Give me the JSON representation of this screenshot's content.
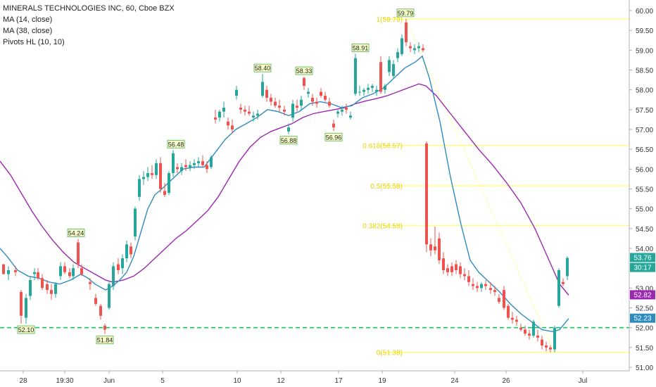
{
  "legend": {
    "title": "MINERALS TECHNOLOGIES INC, 60, Cboe BZX",
    "ma14": "MA (14, close)",
    "ma38": "MA (38, close)",
    "pivots": "Pivots HL (10, 10)"
  },
  "colors": {
    "up": "#26a69a",
    "down": "#ef5350",
    "ma14": "#2e8bc0",
    "ma38": "#9c27b0",
    "fib": "#ffff66",
    "dashed_level": "#00c853",
    "pivot_bg": "#f8ffc8",
    "pivot_border": "#4caf50"
  },
  "chart_data": {
    "type": "candlestick",
    "title": "MINERALS TECHNOLOGIES INC, 60, Cboe BZX",
    "x_ticks": [
      "28",
      "19:30",
      "Jun",
      "5",
      "10",
      "12",
      "17",
      "19",
      "24",
      "26",
      "Jul"
    ],
    "y_ticks": [
      "60.00",
      "59.50",
      "59.00",
      "58.50",
      "58.00",
      "57.50",
      "57.00",
      "56.50",
      "56.00",
      "55.50",
      "55.00",
      "54.50",
      "54.00",
      "53.50",
      "53.00",
      "52.50",
      "52.00",
      "51.50",
      "51.00"
    ],
    "ylim": [
      50.95,
      60.2
    ],
    "fib_levels": [
      {
        "label": "1(59.79)",
        "value": 59.79
      },
      {
        "label": "0.618(56.57)",
        "value": 56.6
      },
      {
        "label": "0.5(55.58)",
        "value": 55.58
      },
      {
        "label": "0.382(54.58)",
        "value": 54.58
      },
      {
        "label": "0(51.38)",
        "value": 51.38
      }
    ],
    "dashed_level": 52.0,
    "pivots": [
      {
        "label": "52.10",
        "x": 37,
        "value": 52.1,
        "pos": "below"
      },
      {
        "label": "54.24",
        "x": 108,
        "value": 54.24,
        "pos": "above"
      },
      {
        "label": "51.84",
        "x": 149,
        "value": 51.84,
        "pos": "below"
      },
      {
        "label": "56.48",
        "x": 250,
        "value": 56.48,
        "pos": "above"
      },
      {
        "label": "58.40",
        "x": 373,
        "value": 58.4,
        "pos": "above"
      },
      {
        "label": "58.33",
        "x": 432,
        "value": 58.33,
        "pos": "above"
      },
      {
        "label": "56.88",
        "x": 410,
        "value": 56.88,
        "pos": "below"
      },
      {
        "label": "56.96",
        "x": 474,
        "value": 56.96,
        "pos": "below"
      },
      {
        "label": "58.91",
        "x": 512,
        "value": 58.91,
        "pos": "above"
      },
      {
        "label": "59.79",
        "x": 576,
        "value": 59.79,
        "pos": "above"
      }
    ],
    "price_labels": [
      {
        "label": "53.76",
        "value": 53.76,
        "bg": "#26a69a"
      },
      {
        "label": "30:17",
        "value": 53.51,
        "bg": "#26a69a"
      },
      {
        "label": "52.82",
        "value": 52.82,
        "bg": "#9c27b0"
      },
      {
        "label": "52.23",
        "value": 52.23,
        "bg": "#2e8bc0"
      }
    ],
    "candles": [
      [
        5,
        53.6,
        53.6,
        53.35,
        53.35
      ],
      [
        12,
        53.35,
        53.55,
        53.2,
        53.45
      ],
      [
        22,
        53.45,
        53.55,
        53.3,
        53.4
      ],
      [
        30,
        52.9,
        52.95,
        52.1,
        52.3
      ],
      [
        37,
        52.25,
        52.85,
        52.1,
        52.75
      ],
      [
        43,
        52.8,
        53.3,
        52.7,
        53.2
      ],
      [
        49,
        53.35,
        53.5,
        53.2,
        53.4
      ],
      [
        54,
        53.4,
        53.5,
        53.2,
        53.25
      ],
      [
        60,
        53.25,
        53.35,
        52.95,
        53.0
      ],
      [
        67,
        53.1,
        53.2,
        52.85,
        52.95
      ],
      [
        73,
        52.95,
        53.1,
        52.7,
        52.85
      ],
      [
        79,
        52.85,
        53.15,
        52.75,
        53.1
      ],
      [
        86,
        53.3,
        53.65,
        53.2,
        53.55
      ],
      [
        92,
        53.55,
        53.65,
        53.35,
        53.4
      ],
      [
        99,
        53.4,
        53.5,
        53.25,
        53.3
      ],
      [
        104,
        53.3,
        53.6,
        53.2,
        53.5
      ],
      [
        111,
        54.15,
        54.24,
        53.5,
        53.6
      ],
      [
        116,
        53.5,
        53.6,
        53.3,
        53.35
      ],
      [
        128,
        53.15,
        53.25,
        52.95,
        53.1
      ],
      [
        136,
        52.75,
        52.85,
        52.55,
        52.6
      ],
      [
        143,
        52.55,
        52.6,
        52.2,
        52.3
      ],
      [
        149,
        52.05,
        52.1,
        51.84,
        51.95
      ],
      [
        155,
        52.5,
        53.15,
        52.45,
        53.1
      ],
      [
        161,
        53.05,
        53.65,
        52.95,
        53.55
      ],
      [
        168,
        53.6,
        53.75,
        53.35,
        53.45
      ],
      [
        174,
        53.5,
        53.85,
        53.35,
        53.75
      ],
      [
        180,
        53.75,
        54.2,
        53.65,
        54.1
      ],
      [
        186,
        54.05,
        54.15,
        53.75,
        53.85
      ],
      [
        192,
        54.3,
        55.05,
        54.2,
        55.0
      ],
      [
        198,
        55.3,
        55.85,
        55.2,
        55.75
      ],
      [
        204,
        55.75,
        55.95,
        55.6,
        55.8
      ],
      [
        210,
        55.8,
        56.05,
        55.7,
        55.9
      ],
      [
        216,
        55.9,
        56.1,
        55.75,
        55.85
      ],
      [
        222,
        55.85,
        56.25,
        55.75,
        56.15
      ],
      [
        228,
        56.15,
        56.3,
        55.4,
        55.5
      ],
      [
        234,
        55.45,
        55.65,
        55.3,
        55.35
      ],
      [
        240,
        55.4,
        55.95,
        55.35,
        55.9
      ],
      [
        246,
        55.9,
        56.48,
        55.8,
        56.4
      ],
      [
        252,
        56.05,
        56.15,
        55.9,
        56.0
      ],
      [
        258,
        55.95,
        56.15,
        55.85,
        56.05
      ],
      [
        264,
        56.1,
        56.25,
        55.95,
        56.05
      ],
      [
        270,
        56.05,
        56.2,
        55.95,
        56.1
      ],
      [
        276,
        56.1,
        56.25,
        56.0,
        56.15
      ],
      [
        282,
        56.15,
        56.3,
        56.05,
        56.2
      ],
      [
        288,
        56.2,
        56.35,
        56.05,
        56.1
      ],
      [
        294,
        56.1,
        56.2,
        55.9,
        56.0
      ],
      [
        300,
        56.05,
        56.35,
        56.0,
        56.3
      ],
      [
        306,
        57.3,
        57.5,
        57.15,
        57.25
      ],
      [
        312,
        57.3,
        57.5,
        57.2,
        57.45
      ],
      [
        318,
        57.45,
        57.7,
        57.3,
        57.55
      ],
      [
        324,
        57.2,
        57.3,
        57.0,
        57.1
      ],
      [
        330,
        57.1,
        57.25,
        56.9,
        57.0
      ],
      [
        336,
        57.85,
        58.1,
        57.75,
        58.0
      ],
      [
        342,
        57.55,
        57.65,
        57.4,
        57.5
      ],
      [
        348,
        57.5,
        57.6,
        57.35,
        57.45
      ],
      [
        354,
        57.45,
        57.6,
        57.35,
        57.4
      ],
      [
        360,
        57.3,
        57.45,
        57.2,
        57.35
      ],
      [
        366,
        57.35,
        57.5,
        57.25,
        57.4
      ],
      [
        373,
        57.85,
        58.4,
        57.8,
        58.2
      ],
      [
        379,
        58.0,
        58.1,
        57.7,
        57.8
      ],
      [
        385,
        57.8,
        57.9,
        57.6,
        57.7
      ],
      [
        391,
        57.7,
        57.8,
        57.55,
        57.6
      ],
      [
        397,
        57.6,
        57.75,
        57.45,
        57.55
      ],
      [
        404,
        57.5,
        57.6,
        57.35,
        57.45
      ],
      [
        410,
        56.95,
        57.15,
        56.88,
        57.05
      ],
      [
        416,
        57.3,
        57.75,
        57.2,
        57.65
      ],
      [
        422,
        57.6,
        57.75,
        57.45,
        57.55
      ],
      [
        428,
        57.6,
        57.85,
        57.5,
        57.75
      ],
      [
        432,
        58.3,
        58.33,
        58.0,
        58.1
      ],
      [
        438,
        57.9,
        58.05,
        57.8,
        57.95
      ],
      [
        444,
        57.8,
        57.9,
        57.6,
        57.7
      ],
      [
        450,
        57.7,
        57.8,
        57.55,
        57.65
      ],
      [
        456,
        57.95,
        58.05,
        57.8,
        57.85
      ],
      [
        462,
        57.85,
        57.95,
        57.7,
        57.75
      ],
      [
        468,
        57.7,
        57.8,
        57.55,
        57.6
      ],
      [
        474,
        57.15,
        57.25,
        56.96,
        57.05
      ],
      [
        480,
        57.4,
        57.5,
        57.3,
        57.45
      ],
      [
        486,
        57.45,
        57.6,
        57.35,
        57.5
      ],
      [
        492,
        57.55,
        57.65,
        57.4,
        57.5
      ],
      [
        498,
        57.3,
        57.45,
        57.25,
        57.35
      ],
      [
        505,
        57.9,
        58.91,
        57.85,
        58.8
      ],
      [
        511,
        57.95,
        58.1,
        57.85,
        57.95
      ],
      [
        517,
        57.95,
        58.05,
        57.85,
        58.0
      ],
      [
        523,
        58.0,
        58.15,
        57.9,
        58.05
      ],
      [
        529,
        58.05,
        58.15,
        57.95,
        58.1
      ],
      [
        535,
        57.95,
        58.1,
        57.85,
        58.0
      ],
      [
        541,
        58.7,
        58.85,
        57.9,
        57.95
      ],
      [
        547,
        58.0,
        58.15,
        57.9,
        58.1
      ],
      [
        553,
        58.45,
        58.85,
        58.35,
        58.75
      ],
      [
        559,
        58.35,
        58.75,
        58.3,
        58.65
      ],
      [
        565,
        58.8,
        59.05,
        58.7,
        58.95
      ],
      [
        571,
        58.9,
        59.4,
        58.85,
        59.3
      ],
      [
        577,
        59.7,
        59.79,
        59.1,
        59.2
      ],
      [
        583,
        59.1,
        59.2,
        58.95,
        59.05
      ],
      [
        589,
        59.0,
        59.15,
        58.9,
        59.05
      ],
      [
        595,
        59.05,
        59.2,
        58.95,
        59.1
      ],
      [
        601,
        59.05,
        59.15,
        58.95,
        59.0
      ],
      [
        606,
        56.65,
        56.7,
        53.9,
        54.1
      ],
      [
        612,
        54.1,
        54.25,
        53.8,
        53.95
      ],
      [
        618,
        54.05,
        54.55,
        53.85,
        53.95
      ],
      [
        624,
        54.25,
        54.4,
        53.6,
        53.7
      ],
      [
        630,
        53.75,
        53.9,
        53.35,
        53.45
      ],
      [
        636,
        53.5,
        53.6,
        53.3,
        53.4
      ],
      [
        642,
        53.55,
        53.65,
        53.3,
        53.4
      ],
      [
        648,
        53.6,
        53.7,
        53.35,
        53.45
      ],
      [
        654,
        53.55,
        53.65,
        53.25,
        53.35
      ],
      [
        660,
        53.35,
        53.5,
        53.2,
        53.3
      ],
      [
        666,
        53.3,
        53.45,
        53.05,
        53.15
      ],
      [
        672,
        53.1,
        53.25,
        52.95,
        53.05
      ],
      [
        678,
        53.05,
        53.15,
        52.9,
        53.0
      ],
      [
        684,
        53.0,
        53.15,
        52.9,
        53.1
      ],
      [
        690,
        53.1,
        53.2,
        52.95,
        53.05
      ],
      [
        697,
        53.0,
        53.15,
        52.85,
        52.95
      ],
      [
        703,
        52.95,
        53.05,
        52.8,
        52.9
      ],
      [
        709,
        52.75,
        52.85,
        52.6,
        52.65
      ],
      [
        716,
        52.95,
        53.05,
        52.45,
        52.5
      ],
      [
        722,
        52.55,
        52.6,
        52.2,
        52.25
      ],
      [
        728,
        52.25,
        52.4,
        52.1,
        52.2
      ],
      [
        734,
        52.2,
        52.3,
        52.05,
        52.15
      ],
      [
        740,
        52.0,
        52.1,
        51.9,
        51.95
      ],
      [
        746,
        51.95,
        52.05,
        51.8,
        51.85
      ],
      [
        752,
        51.85,
        51.95,
        51.7,
        51.8
      ],
      [
        758,
        51.8,
        52.2,
        51.75,
        52.15
      ],
      [
        764,
        51.8,
        51.95,
        51.65,
        51.75
      ],
      [
        770,
        51.7,
        51.8,
        51.45,
        51.55
      ],
      [
        776,
        51.55,
        51.65,
        51.4,
        51.5
      ],
      [
        782,
        51.5,
        51.55,
        51.38,
        51.45
      ],
      [
        788,
        51.45,
        52.05,
        51.38,
        52.0
      ],
      [
        794,
        52.55,
        53.5,
        52.5,
        53.45
      ],
      [
        800,
        53.15,
        53.25,
        53.05,
        53.1
      ],
      [
        806,
        53.3,
        53.8,
        53.2,
        53.76
      ]
    ],
    "ma14": [
      [
        0,
        54.0
      ],
      [
        10,
        53.8
      ],
      [
        25,
        53.45
      ],
      [
        40,
        53.3
      ],
      [
        55,
        53.25
      ],
      [
        70,
        53.15
      ],
      [
        85,
        53.1
      ],
      [
        100,
        53.2
      ],
      [
        115,
        53.35
      ],
      [
        125,
        53.25
      ],
      [
        135,
        53.1
      ],
      [
        150,
        52.95
      ],
      [
        160,
        53.05
      ],
      [
        170,
        53.2
      ],
      [
        180,
        53.4
      ],
      [
        190,
        53.8
      ],
      [
        200,
        54.4
      ],
      [
        210,
        55.0
      ],
      [
        220,
        55.35
      ],
      [
        230,
        55.5
      ],
      [
        245,
        55.75
      ],
      [
        260,
        56.0
      ],
      [
        275,
        56.05
      ],
      [
        290,
        56.05
      ],
      [
        305,
        56.4
      ],
      [
        320,
        56.75
      ],
      [
        335,
        57.0
      ],
      [
        350,
        57.15
      ],
      [
        365,
        57.3
      ],
      [
        380,
        57.5
      ],
      [
        395,
        57.45
      ],
      [
        410,
        57.35
      ],
      [
        425,
        57.45
      ],
      [
        440,
        57.65
      ],
      [
        455,
        57.7
      ],
      [
        470,
        57.65
      ],
      [
        485,
        57.55
      ],
      [
        500,
        57.6
      ],
      [
        515,
        57.8
      ],
      [
        530,
        57.9
      ],
      [
        545,
        58.05
      ],
      [
        560,
        58.3
      ],
      [
        575,
        58.55
      ],
      [
        590,
        58.7
      ],
      [
        600,
        58.85
      ],
      [
        610,
        58.3
      ],
      [
        625,
        57.2
      ],
      [
        640,
        55.8
      ],
      [
        655,
        54.6
      ],
      [
        668,
        53.7
      ],
      [
        680,
        53.4
      ],
      [
        695,
        53.15
      ],
      [
        710,
        52.9
      ],
      [
        725,
        52.6
      ],
      [
        740,
        52.35
      ],
      [
        755,
        52.15
      ],
      [
        770,
        51.95
      ],
      [
        785,
        51.9
      ],
      [
        795,
        51.95
      ],
      [
        808,
        52.23
      ]
    ],
    "ma38": [
      [
        0,
        56.2
      ],
      [
        15,
        55.85
      ],
      [
        30,
        55.4
      ],
      [
        45,
        54.95
      ],
      [
        60,
        54.55
      ],
      [
        75,
        54.2
      ],
      [
        90,
        53.9
      ],
      [
        105,
        53.65
      ],
      [
        120,
        53.5
      ],
      [
        135,
        53.35
      ],
      [
        150,
        53.2
      ],
      [
        160,
        53.15
      ],
      [
        175,
        53.2
      ],
      [
        190,
        53.3
      ],
      [
        205,
        53.5
      ],
      [
        220,
        53.75
      ],
      [
        235,
        54.0
      ],
      [
        250,
        54.25
      ],
      [
        265,
        54.45
      ],
      [
        280,
        54.7
      ],
      [
        295,
        54.95
      ],
      [
        310,
        55.3
      ],
      [
        325,
        55.75
      ],
      [
        340,
        56.2
      ],
      [
        355,
        56.55
      ],
      [
        370,
        56.8
      ],
      [
        385,
        56.95
      ],
      [
        400,
        57.05
      ],
      [
        415,
        57.15
      ],
      [
        430,
        57.3
      ],
      [
        445,
        57.4
      ],
      [
        460,
        57.45
      ],
      [
        475,
        57.5
      ],
      [
        490,
        57.55
      ],
      [
        505,
        57.65
      ],
      [
        520,
        57.72
      ],
      [
        535,
        57.78
      ],
      [
        550,
        57.85
      ],
      [
        565,
        57.95
      ],
      [
        580,
        58.05
      ],
      [
        595,
        58.15
      ],
      [
        605,
        58.1
      ],
      [
        620,
        57.85
      ],
      [
        640,
        57.4
      ],
      [
        660,
        56.95
      ],
      [
        680,
        56.5
      ],
      [
        700,
        56.1
      ],
      [
        720,
        55.65
      ],
      [
        740,
        55.15
      ],
      [
        760,
        54.5
      ],
      [
        780,
        53.7
      ],
      [
        795,
        53.1
      ],
      [
        808,
        52.82
      ]
    ]
  }
}
